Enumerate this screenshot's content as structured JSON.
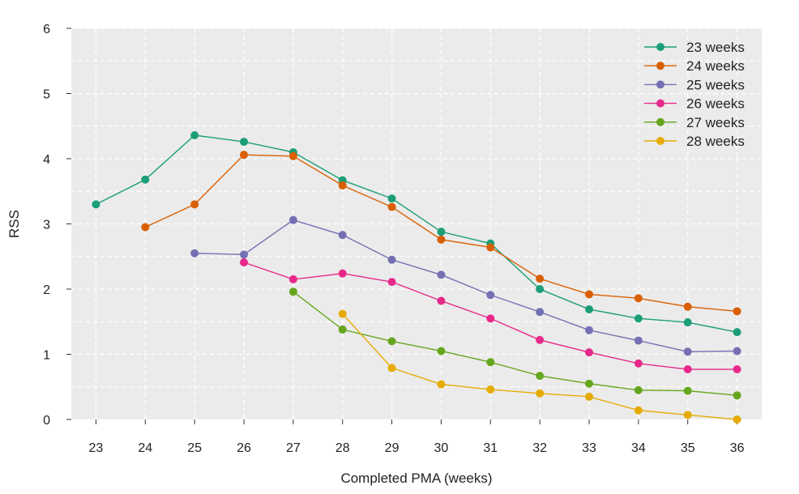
{
  "chart_data": {
    "type": "line",
    "title": "",
    "xlabel": "Completed PMA (weeks)",
    "ylabel": "RSS",
    "x": [
      23,
      24,
      25,
      26,
      27,
      28,
      29,
      30,
      31,
      32,
      33,
      34,
      35,
      36
    ],
    "x_tick_labels": [
      "23",
      "24",
      "25",
      "26",
      "27",
      "28",
      "29",
      "30",
      "31",
      "32",
      "33",
      "34",
      "35",
      "36"
    ],
    "xlim": [
      22.5,
      36.5
    ],
    "ylim": [
      0,
      6
    ],
    "y_ticks": [
      0,
      1,
      2,
      3,
      4,
      5,
      6
    ],
    "y_tick_labels": [
      "0",
      "1",
      "2",
      "3",
      "4",
      "5",
      "6"
    ],
    "grid": true,
    "legend_position": "top-right",
    "series": [
      {
        "name": "23 weeks",
        "color": "#1b9e77",
        "values": [
          3.3,
          3.68,
          4.36,
          4.26,
          4.1,
          3.67,
          3.39,
          2.88,
          2.7,
          2.0,
          1.69,
          1.55,
          1.49,
          1.34
        ]
      },
      {
        "name": "24 weeks",
        "color": "#d95f02",
        "values": [
          null,
          2.95,
          3.3,
          4.06,
          4.04,
          3.59,
          3.26,
          2.76,
          2.64,
          2.16,
          1.92,
          1.86,
          1.73,
          1.66
        ]
      },
      {
        "name": "25 weeks",
        "color": "#7570b3",
        "values": [
          null,
          null,
          2.55,
          2.53,
          3.06,
          2.83,
          2.45,
          2.22,
          1.91,
          1.65,
          1.37,
          1.21,
          1.04,
          1.05
        ]
      },
      {
        "name": "26 weeks",
        "color": "#e7298a",
        "values": [
          null,
          null,
          null,
          2.41,
          2.15,
          2.24,
          2.11,
          1.82,
          1.55,
          1.22,
          1.03,
          0.86,
          0.77,
          0.77
        ]
      },
      {
        "name": "27 weeks",
        "color": "#66a61e",
        "values": [
          null,
          null,
          null,
          null,
          1.96,
          1.38,
          1.2,
          1.05,
          0.88,
          0.67,
          0.55,
          0.45,
          0.44,
          0.37
        ]
      },
      {
        "name": "28 weeks",
        "color": "#e6ab02",
        "values": [
          null,
          null,
          null,
          null,
          null,
          1.62,
          0.79,
          0.54,
          0.46,
          0.4,
          0.35,
          0.14,
          0.07,
          0.0
        ]
      }
    ]
  }
}
